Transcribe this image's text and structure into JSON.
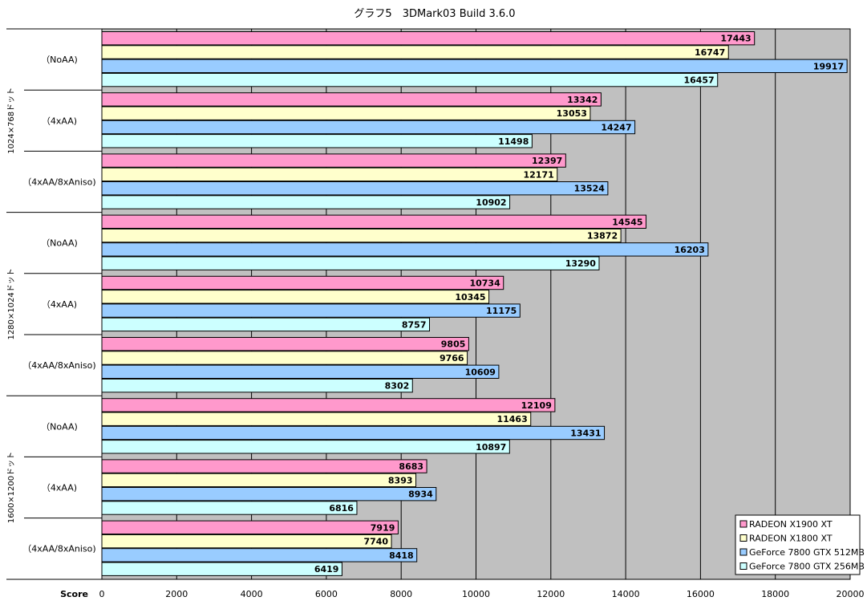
{
  "chart_data": {
    "type": "bar",
    "orientation": "horizontal",
    "title": "グラフ5　3DMark03  Build 3.6.0",
    "xlabel": "Score",
    "xlim": [
      0,
      20000
    ],
    "xticks": [
      "0",
      "2000",
      "4000",
      "6000",
      "8000",
      "10000",
      "12000",
      "14000",
      "16000",
      "18000",
      "20000"
    ],
    "grid": true,
    "legend_position": "bottom-right",
    "series": [
      {
        "name": "RADEON X1900 XT",
        "color": "#ff99cc"
      },
      {
        "name": "RADEON X1800 XT",
        "color": "#ffffcc"
      },
      {
        "name": "GeForce 7800 GTX 512MB",
        "color": "#99ccff"
      },
      {
        "name": "GeForce 7800 GTX 256MB",
        "color": "#ccffff"
      }
    ],
    "groups": [
      {
        "name": "1024×768ドット",
        "categories": [
          {
            "label": "（NoAA)",
            "values": [
              17443,
              16747,
              19917,
              16457
            ]
          },
          {
            "label": "（4xAA)",
            "values": [
              13342,
              13053,
              14247,
              11498
            ]
          },
          {
            "label": "（4xAA/8xAniso)",
            "values": [
              12397,
              12171,
              13524,
              10902
            ]
          }
        ]
      },
      {
        "name": "1280×1024ドット",
        "categories": [
          {
            "label": "（NoAA)",
            "values": [
              14545,
              13872,
              16203,
              13290
            ]
          },
          {
            "label": "（4xAA)",
            "values": [
              10734,
              10345,
              11175,
              8757
            ]
          },
          {
            "label": "（4xAA/8xAniso)",
            "values": [
              9805,
              9766,
              10609,
              8302
            ]
          }
        ]
      },
      {
        "name": "1600×1200ドット",
        "categories": [
          {
            "label": "（NoAA)",
            "values": [
              12109,
              11463,
              13431,
              10897
            ]
          },
          {
            "label": "（4xAA)",
            "values": [
              8683,
              8393,
              8934,
              6816
            ]
          },
          {
            "label": "（4xAA/8xAniso)",
            "values": [
              7919,
              7740,
              8418,
              6419
            ]
          }
        ]
      }
    ]
  },
  "colors": {
    "plot_background": "#c0c0c0",
    "gridline": "#000000",
    "bar_border": "#000000"
  }
}
